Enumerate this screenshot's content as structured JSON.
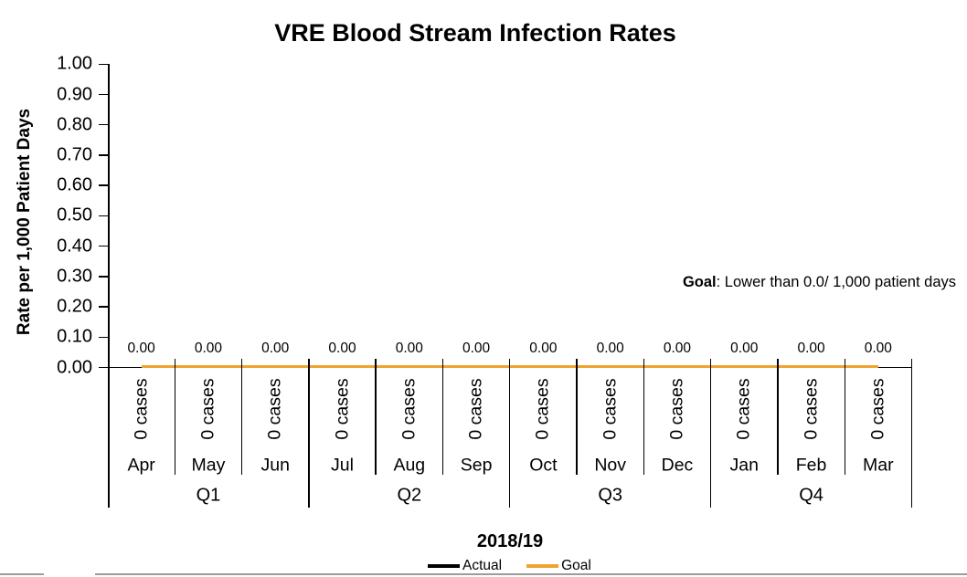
{
  "chart_data": {
    "type": "line",
    "title": "VRE Blood Stream Infection Rates",
    "ylabel": "Rate per 1,000 Patient Days",
    "xlabel": "2018/19",
    "ylim": [
      0,
      1.0
    ],
    "ytick_step": 0.1,
    "ytick_labels": [
      "0.00",
      "0.10",
      "0.20",
      "0.30",
      "0.40",
      "0.50",
      "0.60",
      "0.70",
      "0.80",
      "0.90",
      "1.00"
    ],
    "grid": false,
    "legend_position": "bottom",
    "categories": [
      "Apr",
      "May",
      "Jun",
      "Jul",
      "Aug",
      "Sep",
      "Oct",
      "Nov",
      "Dec",
      "Jan",
      "Feb",
      "Mar"
    ],
    "quarter_labels": [
      "Q1",
      "Q2",
      "Q3",
      "Q4"
    ],
    "series": [
      {
        "name": "Actual",
        "color": "#000000",
        "values": [
          0.0,
          0.0,
          0.0,
          0.0,
          0.0,
          0.0,
          0.0,
          0.0,
          0.0,
          0.0,
          0.0,
          0.0
        ]
      },
      {
        "name": "Goal",
        "color": "#F0A32E",
        "values": [
          0.0,
          0.0,
          0.0,
          0.0,
          0.0,
          0.0,
          0.0,
          0.0,
          0.0,
          0.0,
          0.0,
          0.0
        ]
      }
    ],
    "point_labels": [
      "0.00",
      "0.00",
      "0.00",
      "0.00",
      "0.00",
      "0.00",
      "0.00",
      "0.00",
      "0.00",
      "0.00",
      "0.00",
      "0.00"
    ],
    "case_labels": [
      "0 cases",
      "0 cases",
      "0 cases",
      "0 cases",
      "0 cases",
      "0 cases",
      "0 cases",
      "0 cases",
      "0 cases",
      "0 cases",
      "0 cases",
      "0 cases"
    ],
    "annotation": {
      "bold": "Goal",
      "text": ": Lower than 0.0/ 1,000 patient days"
    }
  },
  "page": {
    "bottom_border_color": "#9b9b9b"
  }
}
